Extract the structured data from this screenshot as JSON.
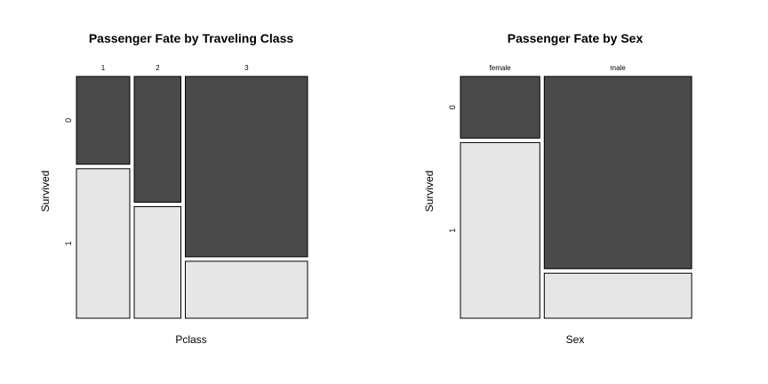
{
  "colors": {
    "survived_0": "#4a4a4a",
    "survived_1": "#e6e6e6",
    "border": "#000000"
  },
  "chart_data": [
    {
      "type": "mosaic",
      "title": "Passenger Fate by Traveling Class",
      "xlabel": "Pclass",
      "ylabel": "Survived",
      "categories": [
        "1",
        "2",
        "3"
      ],
      "levels": [
        "0",
        "1"
      ],
      "column_shares": [
        0.24,
        0.21,
        0.55
      ],
      "row_shares": [
        [
          0.37,
          0.63
        ],
        [
          0.53,
          0.47
        ],
        [
          0.76,
          0.24
        ]
      ]
    },
    {
      "type": "mosaic",
      "title": "Passenger Fate by Sex",
      "xlabel": "Sex",
      "ylabel": "Survived",
      "categories": [
        "female",
        "male"
      ],
      "levels": [
        "0",
        "1"
      ],
      "column_shares": [
        0.35,
        0.65
      ],
      "row_shares": [
        [
          0.26,
          0.74
        ],
        [
          0.81,
          0.19
        ]
      ]
    }
  ]
}
